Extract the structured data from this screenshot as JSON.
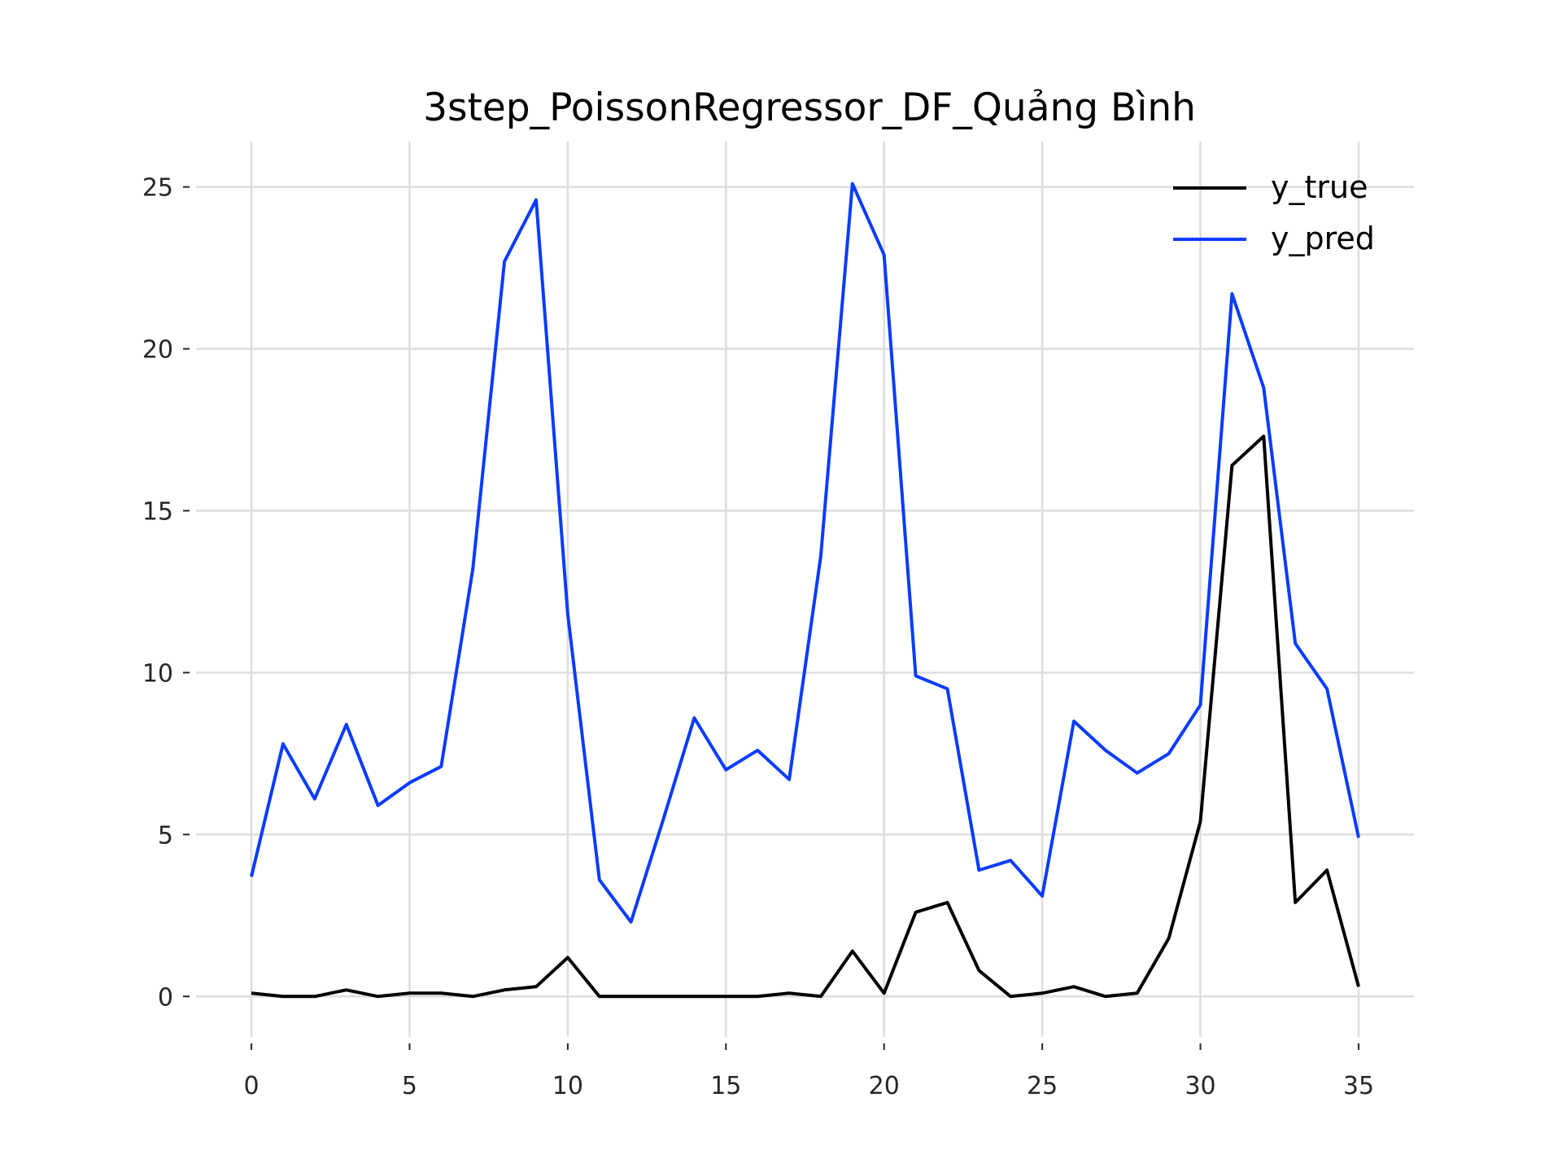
{
  "chart_data": {
    "type": "line",
    "title": "3step_PoissonRegressor_DF_Quảng Bình",
    "xlabel": "",
    "ylabel": "",
    "xlim": [
      -1.75,
      36.75
    ],
    "ylim": [
      -1.25,
      26.4
    ],
    "xticks": [
      0,
      5,
      10,
      15,
      20,
      25,
      30,
      35
    ],
    "yticks": [
      0,
      5,
      10,
      15,
      20,
      25
    ],
    "grid": true,
    "legend_position": "top-right",
    "x": [
      0,
      1,
      2,
      3,
      4,
      5,
      6,
      7,
      8,
      9,
      10,
      11,
      12,
      13,
      14,
      15,
      16,
      17,
      18,
      19,
      20,
      21,
      22,
      23,
      24,
      25,
      26,
      27,
      28,
      29,
      30,
      31,
      32,
      33,
      34,
      35
    ],
    "series": [
      {
        "name": "y_true",
        "color": "#000000",
        "values": [
          0.1,
          0.0,
          0.0,
          0.2,
          0.0,
          0.1,
          0.1,
          0.0,
          0.2,
          0.3,
          1.2,
          0.0,
          0.0,
          0.0,
          0.0,
          0.0,
          0.0,
          0.1,
          0.0,
          1.4,
          0.1,
          2.6,
          2.9,
          0.8,
          0.0,
          0.1,
          0.3,
          0.0,
          0.1,
          1.8,
          5.4,
          16.4,
          17.3,
          2.9,
          3.9,
          0.3
        ]
      },
      {
        "name": "y_pred",
        "color": "#0a3cff",
        "values": [
          3.7,
          7.8,
          6.1,
          8.4,
          5.9,
          6.6,
          7.1,
          13.2,
          22.7,
          24.6,
          11.8,
          3.6,
          2.3,
          5.4,
          8.6,
          7.0,
          7.6,
          6.7,
          13.6,
          25.1,
          22.9,
          9.9,
          9.5,
          3.9,
          4.2,
          3.1,
          8.5,
          7.6,
          6.9,
          7.5,
          9.0,
          21.7,
          18.8,
          10.9,
          9.5,
          4.9
        ]
      }
    ]
  }
}
